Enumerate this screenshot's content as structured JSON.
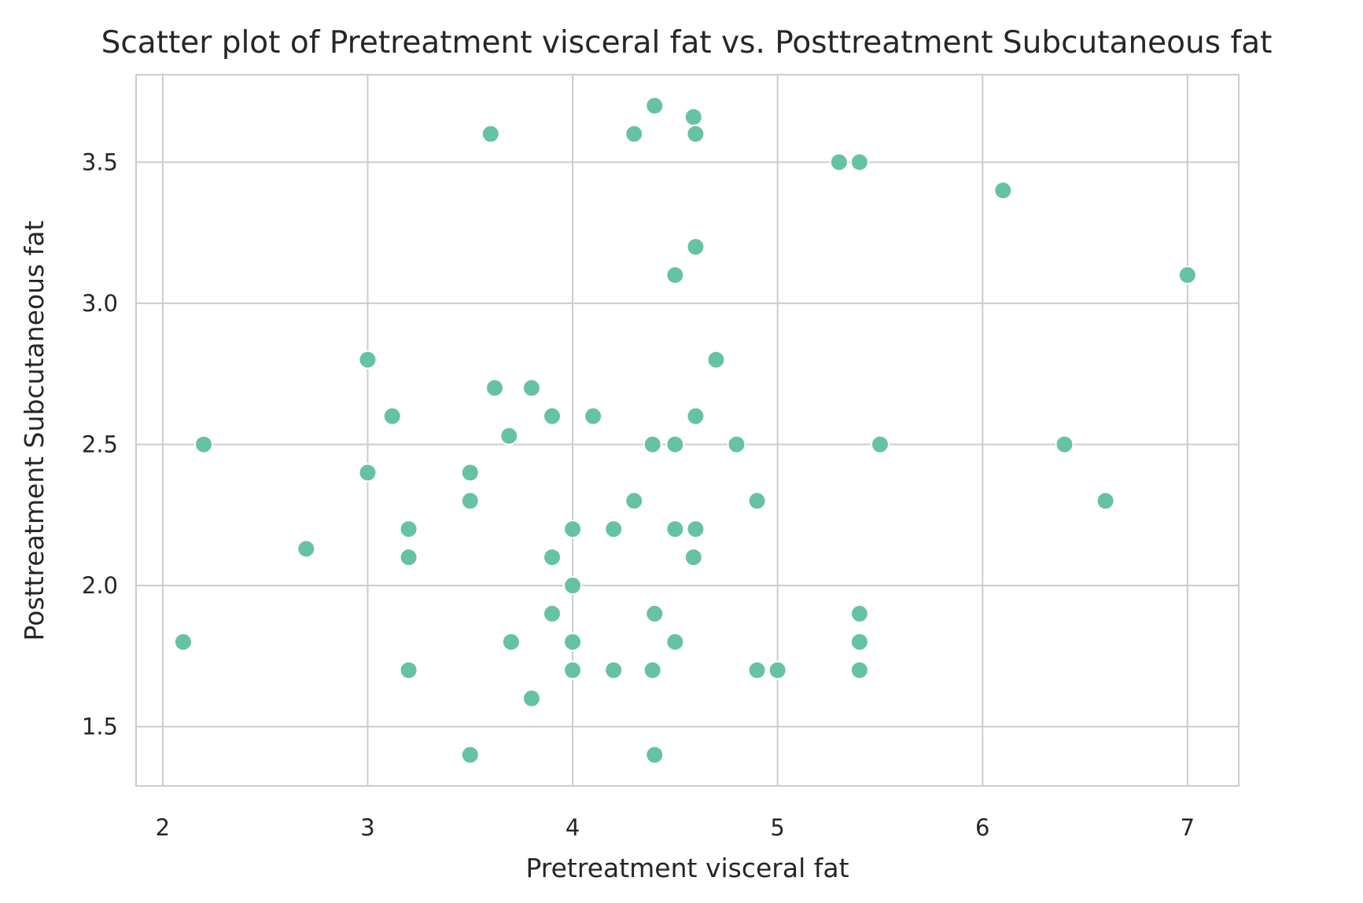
{
  "chart_data": {
    "type": "scatter",
    "title": "Scatter plot of Pretreatment visceral fat vs. Posttreatment Subcutaneous fat",
    "xlabel": "Pretreatment visceral fat",
    "ylabel": "Posttreatment Subcutaneous fat",
    "xlim": [
      1.87,
      7.25
    ],
    "ylim": [
      1.29,
      3.81
    ],
    "xticks": [
      2,
      3,
      4,
      5,
      6,
      7
    ],
    "xtick_labels": [
      "2",
      "3",
      "4",
      "5",
      "6",
      "7"
    ],
    "yticks": [
      1.5,
      2.0,
      2.5,
      3.0,
      3.5
    ],
    "ytick_labels": [
      "1.5",
      "2.0",
      "2.5",
      "3.0",
      "3.5"
    ],
    "grid": true,
    "point_color": "#66c2a5",
    "points": [
      {
        "x": 2.1,
        "y": 1.8
      },
      {
        "x": 2.2,
        "y": 2.5
      },
      {
        "x": 2.7,
        "y": 2.13
      },
      {
        "x": 3.0,
        "y": 2.8
      },
      {
        "x": 3.0,
        "y": 2.4
      },
      {
        "x": 3.12,
        "y": 2.6
      },
      {
        "x": 3.2,
        "y": 2.2
      },
      {
        "x": 3.2,
        "y": 2.1
      },
      {
        "x": 3.2,
        "y": 1.7
      },
      {
        "x": 3.5,
        "y": 2.4
      },
      {
        "x": 3.5,
        "y": 2.3
      },
      {
        "x": 3.5,
        "y": 1.4
      },
      {
        "x": 3.6,
        "y": 3.6
      },
      {
        "x": 3.62,
        "y": 2.7
      },
      {
        "x": 3.69,
        "y": 2.53
      },
      {
        "x": 3.7,
        "y": 1.8
      },
      {
        "x": 3.8,
        "y": 2.7
      },
      {
        "x": 3.8,
        "y": 1.6
      },
      {
        "x": 3.9,
        "y": 2.6
      },
      {
        "x": 3.9,
        "y": 2.1
      },
      {
        "x": 3.9,
        "y": 1.9
      },
      {
        "x": 4.0,
        "y": 2.2
      },
      {
        "x": 4.0,
        "y": 2.0
      },
      {
        "x": 4.0,
        "y": 1.8
      },
      {
        "x": 4.0,
        "y": 1.7
      },
      {
        "x": 4.1,
        "y": 2.6
      },
      {
        "x": 4.2,
        "y": 2.2
      },
      {
        "x": 4.2,
        "y": 1.7
      },
      {
        "x": 4.3,
        "y": 3.6
      },
      {
        "x": 4.3,
        "y": 2.3
      },
      {
        "x": 4.4,
        "y": 3.7
      },
      {
        "x": 4.39,
        "y": 2.5
      },
      {
        "x": 4.4,
        "y": 1.9
      },
      {
        "x": 4.39,
        "y": 1.7
      },
      {
        "x": 4.4,
        "y": 1.4
      },
      {
        "x": 4.5,
        "y": 3.1
      },
      {
        "x": 4.5,
        "y": 2.5
      },
      {
        "x": 4.5,
        "y": 2.2
      },
      {
        "x": 4.5,
        "y": 1.8
      },
      {
        "x": 4.59,
        "y": 3.66
      },
      {
        "x": 4.6,
        "y": 3.6
      },
      {
        "x": 4.6,
        "y": 3.2
      },
      {
        "x": 4.6,
        "y": 2.6
      },
      {
        "x": 4.6,
        "y": 2.2
      },
      {
        "x": 4.59,
        "y": 2.1
      },
      {
        "x": 4.7,
        "y": 2.8
      },
      {
        "x": 4.8,
        "y": 2.5
      },
      {
        "x": 4.9,
        "y": 2.3
      },
      {
        "x": 4.9,
        "y": 1.7
      },
      {
        "x": 5.0,
        "y": 1.7
      },
      {
        "x": 5.3,
        "y": 3.5
      },
      {
        "x": 5.4,
        "y": 3.5
      },
      {
        "x": 5.4,
        "y": 1.9
      },
      {
        "x": 5.4,
        "y": 1.8
      },
      {
        "x": 5.4,
        "y": 1.7
      },
      {
        "x": 5.5,
        "y": 2.5
      },
      {
        "x": 6.1,
        "y": 3.4
      },
      {
        "x": 6.4,
        "y": 2.5
      },
      {
        "x": 6.6,
        "y": 2.3
      },
      {
        "x": 7.0,
        "y": 3.1
      }
    ]
  }
}
